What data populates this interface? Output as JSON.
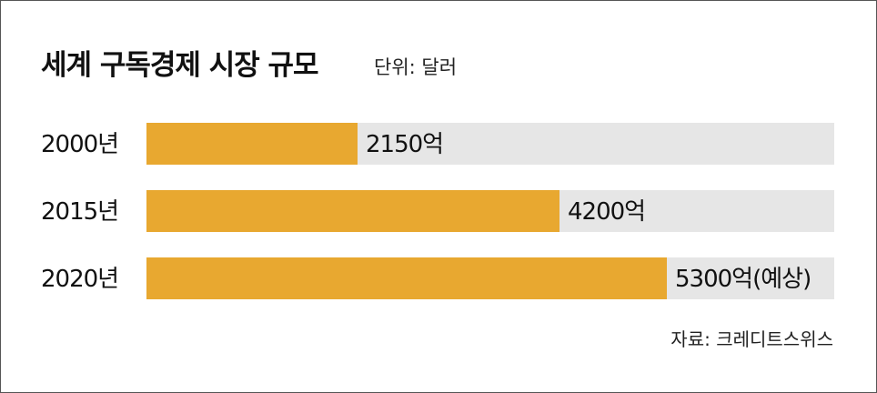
{
  "chart_data": {
    "type": "bar",
    "orientation": "horizontal",
    "title": "세계 구독경제 시장 규모",
    "unit": "단위: 달러",
    "source": "자료: 크레디트스위스",
    "categories": [
      "2000년",
      "2015년",
      "2020년"
    ],
    "values": [
      2150,
      4200,
      5300
    ],
    "value_labels": [
      "2150억",
      "4200억",
      "5300억(예상)"
    ],
    "xlim": [
      0,
      7000
    ],
    "bar_color": "#e8a830",
    "track_color": "#e6e6e6",
    "grid": false,
    "legend": "none"
  }
}
